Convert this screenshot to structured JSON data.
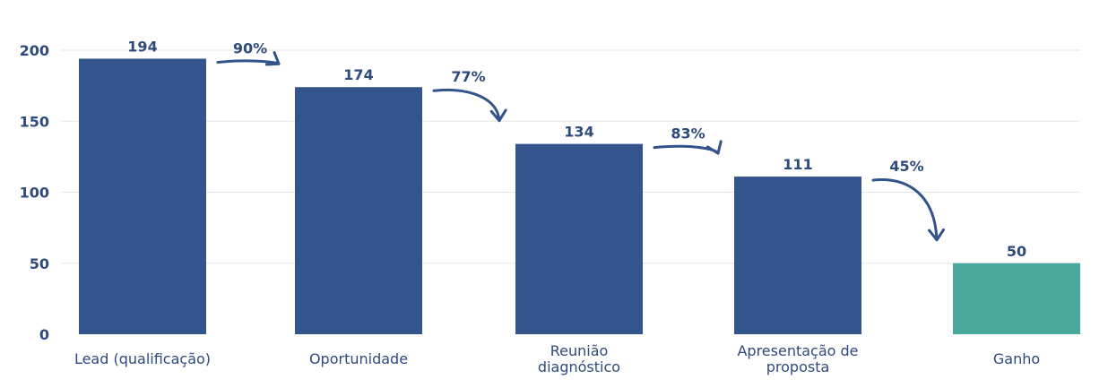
{
  "chart_data": {
    "type": "bar",
    "categories": [
      "Lead (qualificação)",
      "Oportunidade",
      "Reunião diagnóstico",
      "Apresentação de proposta",
      "Ganho"
    ],
    "category_lines": [
      [
        "Lead (qualificação)"
      ],
      [
        "Oportunidade"
      ],
      [
        "Reunião",
        "diagnóstico"
      ],
      [
        "Apresentação de",
        "proposta"
      ],
      [
        "Ganho"
      ]
    ],
    "values": [
      194,
      174,
      134,
      111,
      50
    ],
    "conversion_rates": [
      "90%",
      "77%",
      "83%",
      "45%"
    ],
    "yticks": [
      0,
      50,
      100,
      150,
      200
    ],
    "ylim": [
      0,
      205
    ],
    "grid": true,
    "colors": {
      "bar": "#33548c",
      "final_bar": "#48a89b",
      "arrow": "#32538b",
      "text": "#2f4a7c",
      "grid": "#e6e6e6"
    },
    "title": "",
    "xlabel": "",
    "ylabel": ""
  }
}
